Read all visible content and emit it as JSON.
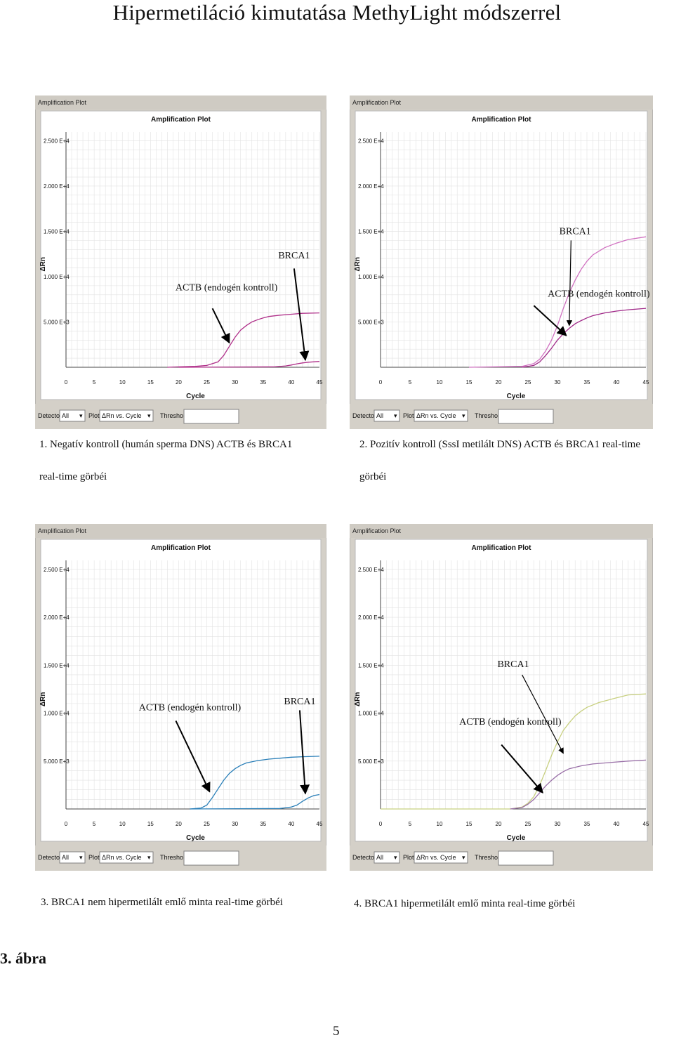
{
  "page": {
    "title": "Hipermetiláció kimutatása MethyLight módszerrel",
    "figure_label": "3. ábra",
    "page_number": "5"
  },
  "ui": {
    "window_title": "Amplification Plot",
    "plot_title": "Amplification Plot",
    "detector_label": "Detector:",
    "detector_value": "All",
    "plot_label": "Plot:",
    "plot_value": "ΔRn vs. Cycle",
    "threshold_label": "Threshold:",
    "threshold_value": ""
  },
  "chart_data": [
    {
      "type": "line",
      "caption": [
        "1. Negatív kontroll (humán sperma DNS) ACTB és BRCA1",
        "real-time görbéi"
      ],
      "xlabel": "Cycle",
      "ylabel": "ΔRn",
      "xlim": [
        0,
        45
      ],
      "ylim": [
        0,
        25000
      ],
      "x_ticks": [
        0,
        5,
        10,
        15,
        20,
        25,
        30,
        35,
        40,
        45
      ],
      "y_ticks": [
        {
          "value": 5000,
          "label": "5.000 E+3"
        },
        {
          "value": 10000,
          "label": "1.000 E+4"
        },
        {
          "value": 15000,
          "label": "1.500 E+4"
        },
        {
          "value": 20000,
          "label": "2.000 E+4"
        },
        {
          "value": 25000,
          "label": "2.500 E+4"
        }
      ],
      "grid": true,
      "series": [
        {
          "name": "ACTB (endogén kontroll)",
          "color": "#b0308a",
          "points": [
            [
              18,
              0
            ],
            [
              20,
              50
            ],
            [
              23,
              100
            ],
            [
              25,
              200
            ],
            [
              27,
              600
            ],
            [
              28,
              1300
            ],
            [
              29,
              2300
            ],
            [
              30,
              3300
            ],
            [
              31,
              4100
            ],
            [
              32,
              4600
            ],
            [
              33,
              5000
            ],
            [
              34,
              5250
            ],
            [
              35,
              5450
            ],
            [
              36,
              5600
            ],
            [
              38,
              5750
            ],
            [
              40,
              5850
            ],
            [
              42,
              5950
            ],
            [
              45,
              6000
            ]
          ]
        },
        {
          "name": "BRCA1",
          "color": "#b0308a",
          "points": [
            [
              20,
              0
            ],
            [
              37,
              50
            ],
            [
              39,
              150
            ],
            [
              40,
              250
            ],
            [
              41,
              380
            ],
            [
              42,
              480
            ],
            [
              43,
              560
            ],
            [
              45,
              640
            ]
          ]
        }
      ],
      "annotations": [
        {
          "text": "BRCA1",
          "x": 40.5,
          "y": 12000,
          "arrow_to": [
            42.5,
            800
          ]
        },
        {
          "text": "ACTB (endogén kontroll)",
          "x": 28.5,
          "y": 8500,
          "arrow_to": [
            29,
            2700
          ],
          "arrow_from": [
            26,
            6500
          ]
        }
      ]
    },
    {
      "type": "line",
      "caption": [
        "2. Pozitív kontroll (SssI metilált DNS) ACTB és BRCA1 real-time",
        "görbéi"
      ],
      "xlabel": "Cycle",
      "ylabel": "ΔRn",
      "xlim": [
        0,
        45
      ],
      "ylim": [
        0,
        25000
      ],
      "x_ticks": [
        0,
        5,
        10,
        15,
        20,
        25,
        30,
        35,
        40,
        45
      ],
      "y_ticks": [
        {
          "value": 5000,
          "label": "5.000 E+3"
        },
        {
          "value": 10000,
          "label": "1.000 E+4"
        },
        {
          "value": 15000,
          "label": "1.500 E+4"
        },
        {
          "value": 20000,
          "label": "2.000 E+4"
        },
        {
          "value": 25000,
          "label": "2.500 E+4"
        }
      ],
      "grid": true,
      "series": [
        {
          "name": "BRCA1",
          "color": "#d070c0",
          "points": [
            [
              15,
              0
            ],
            [
              24,
              100
            ],
            [
              26,
              400
            ],
            [
              27,
              900
            ],
            [
              28,
              1800
            ],
            [
              29,
              3000
            ],
            [
              30,
              4600
            ],
            [
              31,
              6500
            ],
            [
              32,
              8200
            ],
            [
              33,
              9600
            ],
            [
              34,
              10800
            ],
            [
              35,
              11700
            ],
            [
              36,
              12400
            ],
            [
              38,
              13200
            ],
            [
              40,
              13700
            ],
            [
              42,
              14100
            ],
            [
              45,
              14400
            ]
          ]
        },
        {
          "name": "ACTB (endogén kontroll)",
          "color": "#a02888",
          "points": [
            [
              24,
              0
            ],
            [
              26,
              200
            ],
            [
              27,
              600
            ],
            [
              28,
              1300
            ],
            [
              29,
              2100
            ],
            [
              30,
              3000
            ],
            [
              31,
              3700
            ],
            [
              32,
              4300
            ],
            [
              33,
              4800
            ],
            [
              34,
              5150
            ],
            [
              35,
              5450
            ],
            [
              36,
              5700
            ],
            [
              38,
              6000
            ],
            [
              40,
              6200
            ],
            [
              42,
              6350
            ],
            [
              45,
              6500
            ]
          ]
        }
      ],
      "annotations": [
        {
          "text": "BRCA1",
          "x": 33,
          "y": 14700,
          "arrow_to": [
            32,
            4600
          ],
          "arrow_from": [
            32.3,
            14000
          ]
        },
        {
          "text": "ACTB (endogén kontroll)",
          "x": 37,
          "y": 7800,
          "arrow_to": [
            31.5,
            3500
          ],
          "arrow_from": [
            26,
            6800
          ]
        }
      ]
    },
    {
      "type": "line",
      "caption": [
        "3. BRCA1 nem hipermetilált emlő minta real-time görbéi"
      ],
      "xlabel": "Cycle",
      "ylabel": "ΔRn",
      "xlim": [
        0,
        45
      ],
      "ylim": [
        0,
        25000
      ],
      "x_ticks": [
        0,
        5,
        10,
        15,
        20,
        25,
        30,
        35,
        40,
        45
      ],
      "y_ticks": [
        {
          "value": 5000,
          "label": "5.000 E+3"
        },
        {
          "value": 10000,
          "label": "1.000 E+4"
        },
        {
          "value": 15000,
          "label": "1.500 E+4"
        },
        {
          "value": 20000,
          "label": "2.000 E+4"
        },
        {
          "value": 25000,
          "label": "2.500 E+4"
        }
      ],
      "grid": true,
      "series": [
        {
          "name": "ACTB (endogén kontroll)",
          "color": "#2a7fb8",
          "points": [
            [
              22,
              0
            ],
            [
              24,
              100
            ],
            [
              25,
              400
            ],
            [
              26,
              1200
            ],
            [
              27,
              2100
            ],
            [
              28,
              3000
            ],
            [
              29,
              3700
            ],
            [
              30,
              4200
            ],
            [
              31,
              4550
            ],
            [
              32,
              4800
            ],
            [
              34,
              5050
            ],
            [
              36,
              5200
            ],
            [
              38,
              5300
            ],
            [
              40,
              5400
            ],
            [
              42,
              5450
            ],
            [
              45,
              5500
            ]
          ]
        },
        {
          "name": "BRCA1",
          "color": "#2a7fb8",
          "points": [
            [
              22,
              0
            ],
            [
              38,
              50
            ],
            [
              40,
              200
            ],
            [
              41,
              400
            ],
            [
              42,
              800
            ],
            [
              43,
              1150
            ],
            [
              44,
              1400
            ],
            [
              45,
              1500
            ]
          ]
        }
      ],
      "annotations": [
        {
          "text": "BRCA1",
          "x": 41.5,
          "y": 10900,
          "arrow_to": [
            42.5,
            1600
          ],
          "arrow_from": [
            41.5,
            10300
          ]
        },
        {
          "text": "ACTB (endogén kontroll)",
          "x": 22,
          "y": 10300,
          "arrow_to": [
            25.5,
            1800
          ],
          "arrow_from": [
            19.5,
            9200
          ]
        }
      ]
    },
    {
      "type": "line",
      "caption": [
        "4. BRCA1  hipermetilált emlő minta  real-time görbéi"
      ],
      "xlabel": "Cycle",
      "ylabel": "ΔRn",
      "xlim": [
        0,
        45
      ],
      "ylim": [
        0,
        25000
      ],
      "x_ticks": [
        0,
        5,
        10,
        15,
        20,
        25,
        30,
        35,
        40,
        45
      ],
      "y_ticks": [
        {
          "value": 5000,
          "label": "5.000 E+3"
        },
        {
          "value": 10000,
          "label": "1.000 E+4"
        },
        {
          "value": 15000,
          "label": "1.500 E+4"
        },
        {
          "value": 20000,
          "label": "2.000 E+4"
        },
        {
          "value": 25000,
          "label": "2.500 E+4"
        }
      ],
      "grid": true,
      "series": [
        {
          "name": "BRCA1",
          "color": "#c8d080",
          "points": [
            [
              0,
              0
            ],
            [
              5,
              0
            ],
            [
              22,
              0
            ],
            [
              24,
              200
            ],
            [
              25,
              600
            ],
            [
              26,
              1300
            ],
            [
              27,
              2500
            ],
            [
              28,
              4000
            ],
            [
              29,
              5600
            ],
            [
              30,
              7000
            ],
            [
              31,
              8200
            ],
            [
              32,
              9000
            ],
            [
              33,
              9700
            ],
            [
              34,
              10200
            ],
            [
              35,
              10600
            ],
            [
              37,
              11100
            ],
            [
              40,
              11600
            ],
            [
              42,
              11900
            ],
            [
              45,
              12000
            ]
          ]
        },
        {
          "name": "ACTB (endogén kontroll)",
          "color": "#9a70a8",
          "points": [
            [
              22,
              0
            ],
            [
              24,
              150
            ],
            [
              25,
              500
            ],
            [
              26,
              1000
            ],
            [
              27,
              1700
            ],
            [
              28,
              2400
            ],
            [
              29,
              3000
            ],
            [
              30,
              3500
            ],
            [
              31,
              3900
            ],
            [
              32,
              4200
            ],
            [
              34,
              4500
            ],
            [
              36,
              4700
            ],
            [
              38,
              4800
            ],
            [
              40,
              4900
            ],
            [
              42,
              5000
            ],
            [
              45,
              5100
            ]
          ]
        }
      ],
      "annotations": [
        {
          "text": "BRCA1",
          "x": 22.5,
          "y": 14800,
          "arrow_to": [
            31,
            5800
          ],
          "arrow_from": [
            24,
            14000
          ]
        },
        {
          "text": "ACTB (endogén kontroll)",
          "x": 22,
          "y": 8800,
          "arrow_to": [
            27.5,
            1700
          ],
          "arrow_from": [
            20.5,
            6700
          ]
        }
      ]
    }
  ]
}
